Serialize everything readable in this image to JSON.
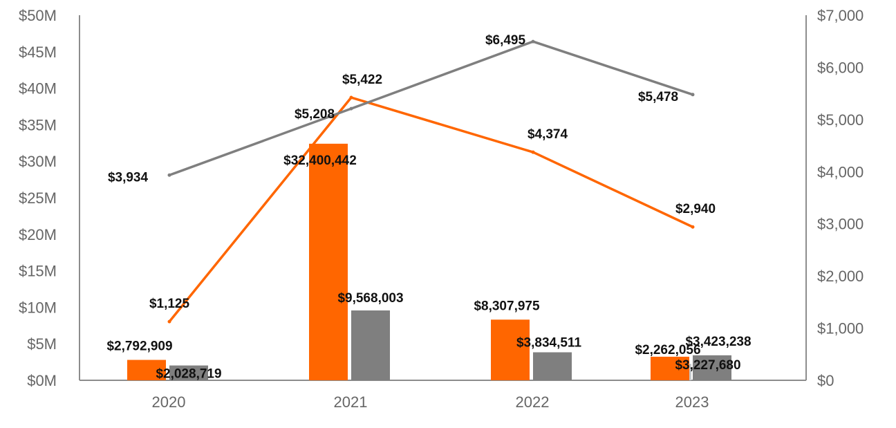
{
  "chart_data": {
    "type": "bar",
    "categories": [
      "2020",
      "2021",
      "2022",
      "2023"
    ],
    "left_axis": {
      "min": 0,
      "max": 50,
      "step": 5,
      "tick_labels": [
        "$0M",
        "$5M",
        "$10M",
        "$15M",
        "$20M",
        "$25M",
        "$30M",
        "$35M",
        "$40M",
        "$45M",
        "$50M"
      ]
    },
    "right_axis": {
      "min": 0,
      "max": 7000,
      "step": 1000,
      "tick_labels": [
        "$0",
        "$1,000",
        "$2,000",
        "$3,000",
        "$4,000",
        "$5,000",
        "$6,000",
        "$7,000"
      ]
    },
    "bar_series": [
      {
        "name": "Light gray bars",
        "color": "#c8c8c8",
        "values": [
          null,
          null,
          null,
          2262056
        ],
        "labels": [
          "",
          "",
          "",
          "$2,262,056"
        ]
      },
      {
        "name": "Orange bars",
        "color": "#ff6600",
        "values": [
          2792909,
          32400442,
          8307975,
          3227680
        ],
        "labels": [
          "$2,792,909",
          "$32,400,442",
          "$8,307,975",
          "$3,227,680"
        ]
      },
      {
        "name": "Gray bars",
        "color": "#7f7f7f",
        "values": [
          2028719,
          9568003,
          3834511,
          3423238
        ],
        "labels": [
          "$2,028,719",
          "$9,568,003",
          "$3,834,511",
          "$3,423,238"
        ]
      }
    ],
    "line_series": [
      {
        "name": "Orange line",
        "color": "#ff6600",
        "axis": "right",
        "values": [
          1125,
          5422,
          4374,
          2940
        ],
        "labels": [
          "$1,125",
          "$5,422",
          "$4,374",
          "$2,940"
        ]
      },
      {
        "name": "Gray line",
        "color": "#7f7f7f",
        "axis": "right",
        "values": [
          3934,
          5208,
          6495,
          5478
        ],
        "labels": [
          "$3,934",
          "$5,208",
          "$6,495",
          "$5,478"
        ]
      }
    ],
    "grid": false,
    "legend": "none"
  }
}
